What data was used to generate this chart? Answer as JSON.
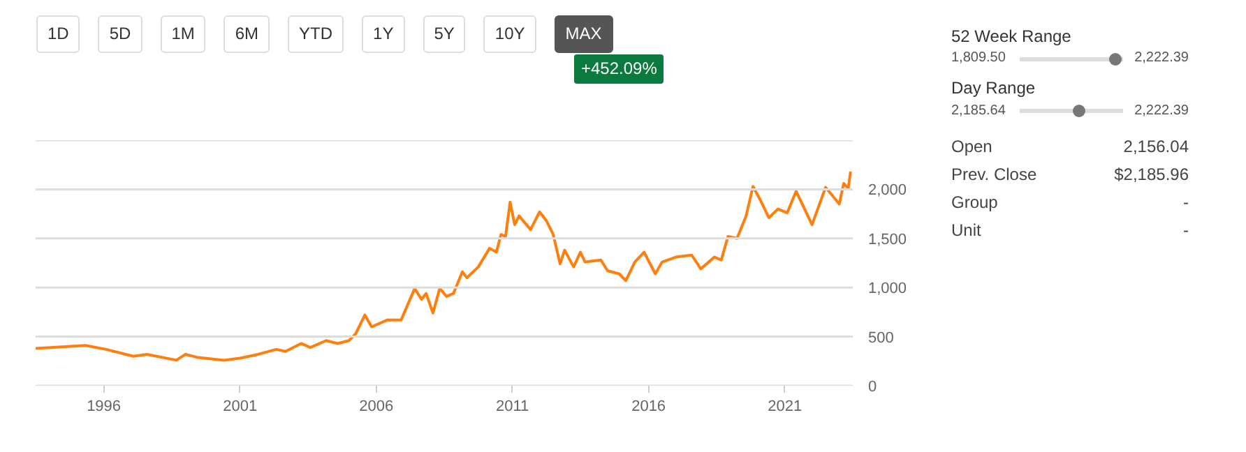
{
  "chart_data": {
    "type": "line",
    "annotations": [
      "1D",
      "5D",
      "1M",
      "6M",
      "YTD",
      "1Y",
      "5Y",
      "10Y",
      "MAX",
      "+452.09%",
      "52 Week Range",
      "1,809.50",
      "2,222.39",
      "Day Range",
      "2,185.64",
      "2,222.39",
      "Open",
      "2,156.04",
      "Prev. Close",
      "$2,185.96",
      "Group",
      "-",
      "Unit",
      "-"
    ],
    "x": [
      "1993-07",
      "1995-05",
      "1996-02",
      "1997-02",
      "1997-08",
      "1998-09",
      "1999-01",
      "1999-06",
      "2000-06",
      "2001-01",
      "2001-09",
      "2002-05",
      "2002-09",
      "2003-04",
      "2003-08",
      "2004-03",
      "2004-08",
      "2005-01",
      "2005-04",
      "2005-08",
      "2005-11",
      "2006-06",
      "2006-12",
      "2007-06",
      "2007-09",
      "2007-11",
      "2008-02",
      "2008-05",
      "2008-08",
      "2008-11",
      "2009-03",
      "2009-05",
      "2009-10",
      "2010-03",
      "2010-06",
      "2010-08",
      "2010-10",
      "2010-12",
      "2011-02",
      "2011-04",
      "2011-09",
      "2012-01",
      "2012-04",
      "2012-07",
      "2012-10",
      "2012-12",
      "2013-04",
      "2013-07",
      "2013-09",
      "2014-04",
      "2014-07",
      "2014-12",
      "2015-03",
      "2015-07",
      "2015-11",
      "2016-04",
      "2016-07",
      "2017-01",
      "2017-08",
      "2017-12",
      "2018-06",
      "2018-09",
      "2018-12",
      "2019-04",
      "2019-08",
      "2019-11",
      "2020-02",
      "2020-06",
      "2020-10",
      "2021-02",
      "2021-06",
      "2022-01",
      "2022-07",
      "2023-01",
      "2023-03",
      "2023-05",
      "2023-06"
    ],
    "series": [
      {
        "color": "#ff7f0e",
        "values": [
          380,
          410,
          370,
          300,
          320,
          260,
          320,
          290,
          260,
          280,
          320,
          370,
          350,
          430,
          390,
          460,
          430,
          460,
          530,
          720,
          600,
          670,
          670,
          990,
          880,
          940,
          740,
          990,
          910,
          940,
          1160,
          1100,
          1210,
          1400,
          1360,
          1540,
          1520,
          1870,
          1640,
          1730,
          1590,
          1770,
          1680,
          1540,
          1240,
          1380,
          1210,
          1360,
          1260,
          1280,
          1170,
          1140,
          1070,
          1260,
          1360,
          1140,
          1260,
          1310,
          1330,
          1190,
          1310,
          1280,
          1520,
          1500,
          1730,
          2030,
          1900,
          1710,
          1800,
          1760,
          1980,
          1640,
          2020,
          1850,
          2060,
          2010,
          2180
        ]
      }
    ],
    "xlim": [
      "1993-07",
      "2023-07"
    ],
    "xticks": [
      "1996",
      "2001",
      "2006",
      "2011",
      "2016",
      "2021"
    ],
    "ylim": [
      0,
      2500
    ],
    "yticks": [
      0,
      500,
      {
        "value": 1000,
        "label": "1,000"
      },
      {
        "value": 1500,
        "label": "1,500"
      },
      {
        "value": 2000,
        "label": "2,000"
      },
      {
        "value": 2500,
        "label": null
      }
    ],
    "grid": "y",
    "marker": "none",
    "line_style": "solid"
  }
}
